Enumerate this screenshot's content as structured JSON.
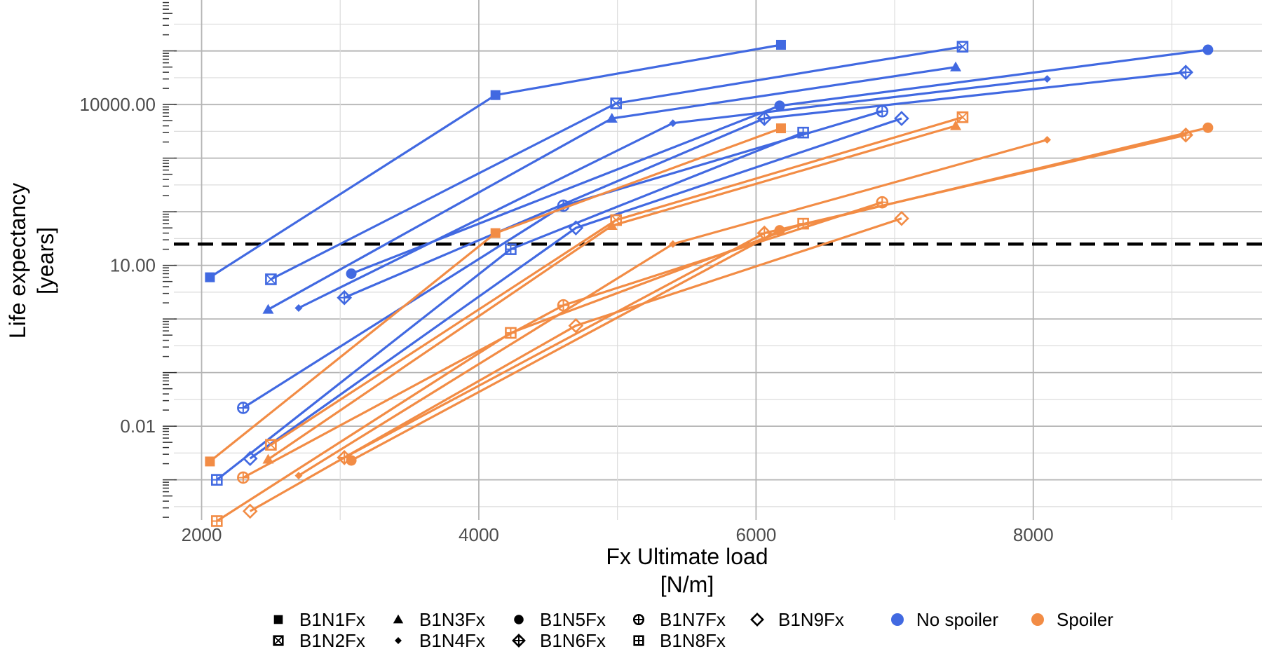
{
  "chart_data": {
    "type": "line",
    "title": "",
    "xlabel": [
      "Fx Ultimate load",
      "[N/m]"
    ],
    "ylabel": [
      "Life expectancy",
      "[years]"
    ],
    "x_scale": "linear",
    "y_scale": "log10",
    "xlim": [
      1800,
      9650
    ],
    "ylim_log10": [
      -3.75,
      5.95
    ],
    "x_ticks": [
      2000,
      4000,
      6000,
      8000
    ],
    "x_tick_labels": [
      "2000",
      "4000",
      "6000",
      "8000"
    ],
    "y_ticks": [
      0.01,
      10,
      10000
    ],
    "y_tick_labels": [
      "0.01",
      "10.00",
      "10000.00"
    ],
    "reference_line": {
      "y": 25,
      "style": "dashed",
      "color": "#000000"
    },
    "grid": true,
    "colors": {
      "No spoiler": "#4169E1",
      "Spoiler": "#F28C45"
    },
    "legend": {
      "placement": "bottom",
      "shapes": [
        {
          "label": "B1N1Fx",
          "shape": "square-filled"
        },
        {
          "label": "B1N2Fx",
          "shape": "square-x"
        },
        {
          "label": "B1N3Fx",
          "shape": "triangle-filled"
        },
        {
          "label": "B1N4Fx",
          "shape": "diamond-small"
        },
        {
          "label": "B1N5Fx",
          "shape": "circle-filled"
        },
        {
          "label": "B1N6Fx",
          "shape": "diamond-plus"
        },
        {
          "label": "B1N7Fx",
          "shape": "circle-plus"
        },
        {
          "label": "B1N8Fx",
          "shape": "square-plus"
        },
        {
          "label": "B1N9Fx",
          "shape": "diamond-open"
        }
      ],
      "colors": [
        {
          "label": "No spoiler",
          "color": "#4169E1"
        },
        {
          "label": "Spoiler",
          "color": "#F28C45"
        }
      ]
    },
    "series": [
      {
        "name": "B1N1Fx",
        "group": "No spoiler",
        "shape": "square-filled",
        "x": [
          2060,
          4120,
          6180
        ],
        "y": [
          6,
          15000,
          130000
        ]
      },
      {
        "name": "B1N2Fx",
        "group": "No spoiler",
        "shape": "square-x",
        "x": [
          2500,
          4990,
          7490
        ],
        "y": [
          5.5,
          10500,
          120000
        ]
      },
      {
        "name": "B1N3Fx",
        "group": "No spoiler",
        "shape": "triangle-filled",
        "x": [
          2480,
          4960,
          7440
        ],
        "y": [
          1.5,
          5500,
          50000
        ]
      },
      {
        "name": "B1N4Fx",
        "group": "No spoiler",
        "shape": "diamond-small",
        "x": [
          2700,
          5400,
          8100
        ],
        "y": [
          1.6,
          4500,
          30000
        ]
      },
      {
        "name": "B1N5Fx",
        "group": "No spoiler",
        "shape": "circle-filled",
        "x": [
          3080,
          6170,
          9260
        ],
        "y": [
          7,
          9500,
          105000
        ]
      },
      {
        "name": "B1N6Fx",
        "group": "No spoiler",
        "shape": "diamond-plus",
        "x": [
          3030,
          6060,
          9100
        ],
        "y": [
          2.5,
          5500,
          40000
        ]
      },
      {
        "name": "B1N7Fx",
        "group": "No spoiler",
        "shape": "circle-plus",
        "x": [
          2300,
          4610,
          6910
        ],
        "y": [
          0.022,
          130,
          7500
        ]
      },
      {
        "name": "B1N8Fx",
        "group": "No spoiler",
        "shape": "square-plus",
        "x": [
          2110,
          4230,
          6340
        ],
        "y": [
          0.001,
          20,
          3000
        ]
      },
      {
        "name": "B1N9Fx",
        "group": "No spoiler",
        "shape": "diamond-open",
        "x": [
          2350,
          4700,
          7050
        ],
        "y": [
          0.0025,
          50,
          5500
        ]
      },
      {
        "name": "B1N1Fx",
        "group": "Spoiler",
        "shape": "square-filled",
        "x": [
          2060,
          4120,
          6180
        ],
        "y": [
          0.0022,
          40,
          3600
        ]
      },
      {
        "name": "B1N2Fx",
        "group": "Spoiler",
        "shape": "square-x",
        "x": [
          2500,
          4990,
          7490
        ],
        "y": [
          0.0045,
          70,
          5800
        ]
      },
      {
        "name": "B1N3Fx",
        "group": "Spoiler",
        "shape": "triangle-filled",
        "x": [
          2480,
          4960,
          7440
        ],
        "y": [
          0.0024,
          55,
          4000
        ]
      },
      {
        "name": "B1N4Fx",
        "group": "Spoiler",
        "shape": "diamond-small",
        "x": [
          2700,
          5400,
          8100
        ],
        "y": [
          0.0012,
          25,
          2200
        ]
      },
      {
        "name": "B1N5Fx",
        "group": "Spoiler",
        "shape": "circle-filled",
        "x": [
          3080,
          6170,
          9260
        ],
        "y": [
          0.0023,
          45,
          3700
        ]
      },
      {
        "name": "B1N6Fx",
        "group": "Spoiler",
        "shape": "diamond-plus",
        "x": [
          3030,
          6060,
          9100
        ],
        "y": [
          0.0026,
          40,
          2700
        ]
      },
      {
        "name": "B1N7Fx",
        "group": "Spoiler",
        "shape": "circle-plus",
        "x": [
          2300,
          4610,
          6910
        ],
        "y": [
          0.0011,
          1.8,
          150
        ]
      },
      {
        "name": "B1N8Fx",
        "group": "Spoiler",
        "shape": "square-plus",
        "x": [
          2110,
          4230,
          6340
        ],
        "y": [
          0.00017,
          0.55,
          60
        ]
      },
      {
        "name": "B1N9Fx",
        "group": "Spoiler",
        "shape": "diamond-open",
        "x": [
          2350,
          4700,
          7050
        ],
        "y": [
          0.00026,
          0.75,
          75
        ]
      }
    ]
  }
}
